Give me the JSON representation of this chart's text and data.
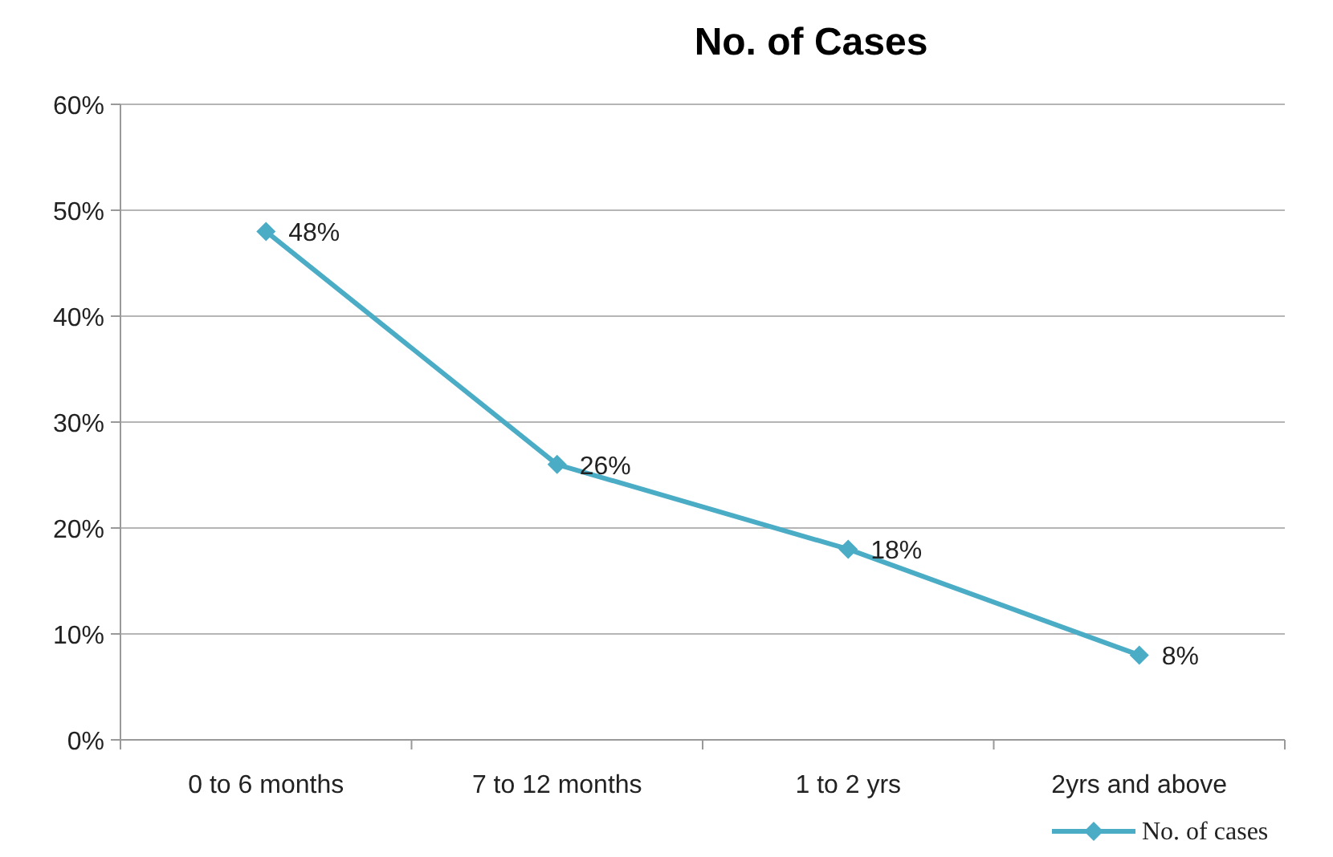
{
  "chart_data": {
    "type": "line",
    "title": "No. of Cases",
    "categories": [
      "0 to 6 months",
      "7 to 12 months",
      "1 to 2 yrs",
      "2yrs and above"
    ],
    "series": [
      {
        "name": "No. of cases",
        "color": "#4bacc6",
        "values": [
          48,
          26,
          18,
          8
        ],
        "value_labels": [
          "48%",
          "26%",
          "18%",
          "8%"
        ]
      }
    ],
    "ylim": [
      0,
      60
    ],
    "yticks": [
      {
        "value": 0,
        "label": "0%"
      },
      {
        "value": 10,
        "label": "10%"
      },
      {
        "value": 20,
        "label": "20%"
      },
      {
        "value": 30,
        "label": "30%"
      },
      {
        "value": 40,
        "label": "40%"
      },
      {
        "value": 50,
        "label": "50%"
      },
      {
        "value": 60,
        "label": "60%"
      }
    ],
    "grid": "y",
    "legend": "bottom right",
    "marker": "diamond",
    "line_style": "solid"
  }
}
